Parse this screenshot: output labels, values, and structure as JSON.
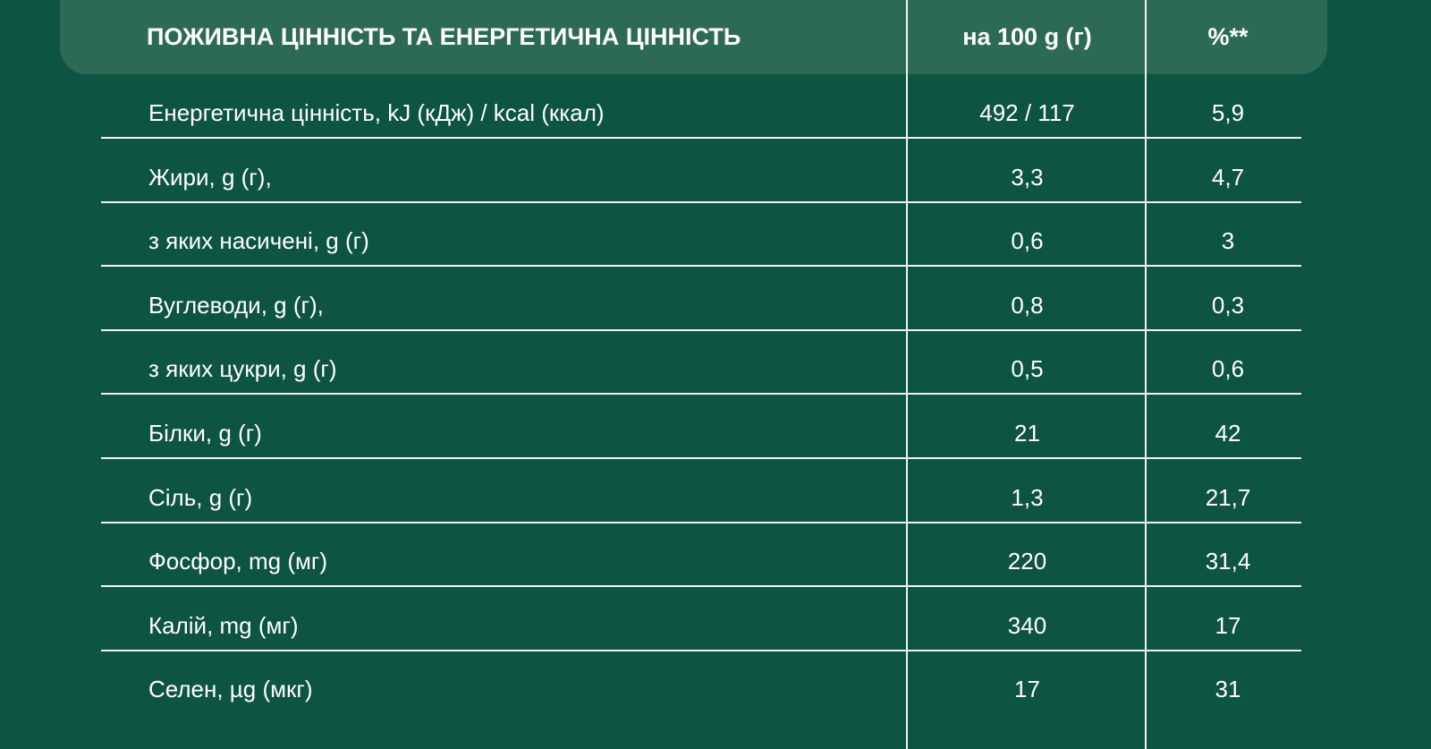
{
  "header": {
    "col1": "ПОЖИВНА ЦІННІСТЬ ТА ЕНЕРГЕТИЧНА ЦІННІСТЬ",
    "col2": "на 100 g (г)",
    "col3": "%**"
  },
  "rows": [
    {
      "name": "Енергетична цінність, kJ (кДж) / kcal (ккал)",
      "per100": "492 / 117",
      "percent": "5,9"
    },
    {
      "name": "Жири, g (г),",
      "per100": "3,3",
      "percent": "4,7"
    },
    {
      "name": "з яких насичені, g (г)",
      "per100": "0,6",
      "percent": "3"
    },
    {
      "name": "Вуглеводи, g (г),",
      "per100": "0,8",
      "percent": "0,3"
    },
    {
      "name": "з яких цукри, g (г)",
      "per100": "0,5",
      "percent": "0,6"
    },
    {
      "name": "Білки, g (г)",
      "per100": "21",
      "percent": "42"
    },
    {
      "name": "Сіль, g (г)",
      "per100": "1,3",
      "percent": "21,7"
    },
    {
      "name": "Фосфор, mg (мг)",
      "per100": "220",
      "percent": "31,4"
    },
    {
      "name": "Калій, mg (мг)",
      "per100": "340",
      "percent": "17"
    },
    {
      "name": "Селен, µg (мкг)",
      "per100": "17",
      "percent": "31"
    }
  ],
  "colors": {
    "background": "#0d5442",
    "header": "#2d6a56",
    "lines": "#f2f2f2"
  }
}
